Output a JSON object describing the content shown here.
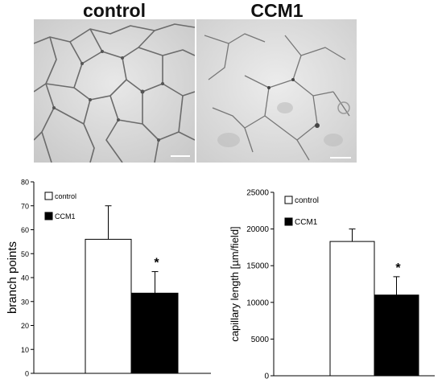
{
  "panels": {
    "left_title": "control",
    "right_title": "CCM1"
  },
  "chart_data": [
    {
      "type": "bar",
      "categories": [
        "control",
        "CCM1"
      ],
      "values": [
        56,
        33.5
      ],
      "errors": [
        14,
        9
      ],
      "ylabel": "branch points",
      "ylim": [
        0,
        80
      ],
      "yticks": [
        0,
        10,
        20,
        30,
        40,
        50,
        60,
        70,
        80
      ],
      "significance": [
        "",
        "*"
      ],
      "legend": [
        "control",
        "CCM1"
      ],
      "legend_position": "top-left",
      "colors": [
        "#ffffff",
        "#000000"
      ]
    },
    {
      "type": "bar",
      "categories": [
        "control",
        "CCM1"
      ],
      "values": [
        18300,
        11000
      ],
      "errors": [
        1700,
        2500
      ],
      "ylabel": "capillary length [µm/field]",
      "ylim": [
        0,
        25000
      ],
      "yticks": [
        0,
        5000,
        10000,
        15000,
        20000,
        25000
      ],
      "significance": [
        "",
        "*"
      ],
      "legend": [
        "control",
        "CCM1"
      ],
      "legend_position": "top-left",
      "colors": [
        "#ffffff",
        "#000000"
      ]
    }
  ]
}
